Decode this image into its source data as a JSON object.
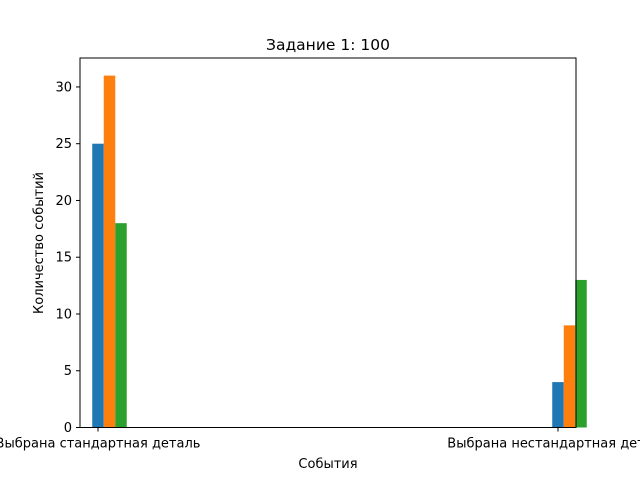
{
  "chart_data": {
    "type": "bar",
    "title": "Задание 1: 100",
    "xlabel": "События",
    "ylabel": "Количество событий",
    "categories": [
      "Выбрана стандартная деталь",
      "Выбрана нестандартная деталь"
    ],
    "series": [
      {
        "values": [
          25,
          4
        ],
        "color": "#1f77b4"
      },
      {
        "values": [
          31,
          9
        ],
        "color": "#ff7f0e"
      },
      {
        "values": [
          18,
          13
        ],
        "color": "#2ca02c"
      }
    ],
    "ylim": [
      0,
      32.55
    ],
    "yticks": [
      0,
      5,
      10,
      15,
      20,
      25,
      30
    ],
    "grid": false,
    "legend": "none"
  }
}
